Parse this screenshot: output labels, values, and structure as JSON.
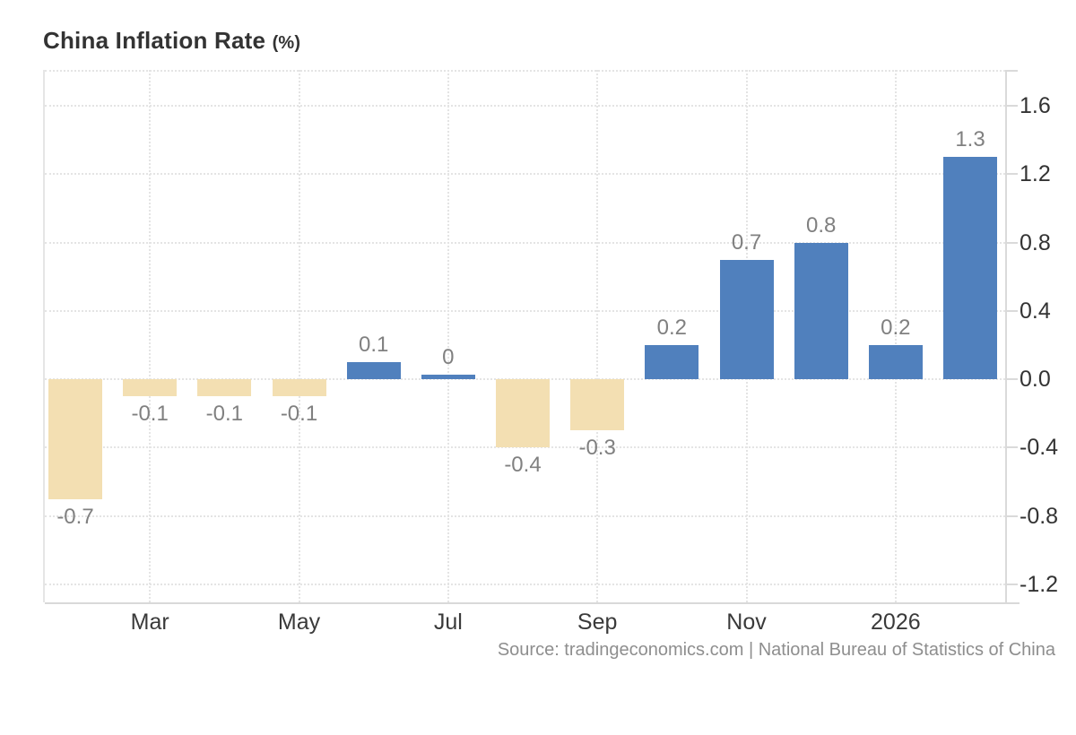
{
  "page": {
    "title": "China Inflation Rate",
    "title_suffix": "(%)",
    "source": "Source: tradingeconomics.com | National Bureau of Statistics of China"
  },
  "chart_data": {
    "type": "bar",
    "title": "China Inflation Rate (%)",
    "xlabel": "",
    "ylabel": "",
    "ylim": [
      -1.305,
      1.81
    ],
    "grid": "dotted",
    "legend_position": "none",
    "y_ticks": [
      1.6,
      1.2,
      0.8,
      0.4,
      0,
      -0.4,
      -0.8,
      -1.2
    ],
    "y_tick_labels": [
      "1.6",
      "1.2",
      "0.8",
      "0.4",
      "0.0",
      "-0.4",
      "-0.8",
      "-1.2"
    ],
    "values": [
      -0.7,
      -0.1,
      -0.1,
      -0.1,
      0.1,
      0,
      -0.4,
      -0.3,
      0.2,
      0.7,
      0.8,
      0.2,
      1.3
    ],
    "bar_labels": [
      "-0.7",
      "-0.1",
      "-0.1",
      "-0.1",
      "0.1",
      "0",
      "-0.4",
      "-0.3",
      "0.2",
      "0.7",
      "0.8",
      "0.2",
      "1.3"
    ],
    "x_ticks": [
      {
        "index": 1,
        "label": "Mar"
      },
      {
        "index": 3,
        "label": "May"
      },
      {
        "index": 5,
        "label": "Jul"
      },
      {
        "index": 7,
        "label": "Sep"
      },
      {
        "index": 9,
        "label": "Nov"
      },
      {
        "index": 11,
        "label": "2026"
      }
    ],
    "colors": {
      "positive": "#5080BD",
      "negative": "#F3DFB2"
    }
  }
}
